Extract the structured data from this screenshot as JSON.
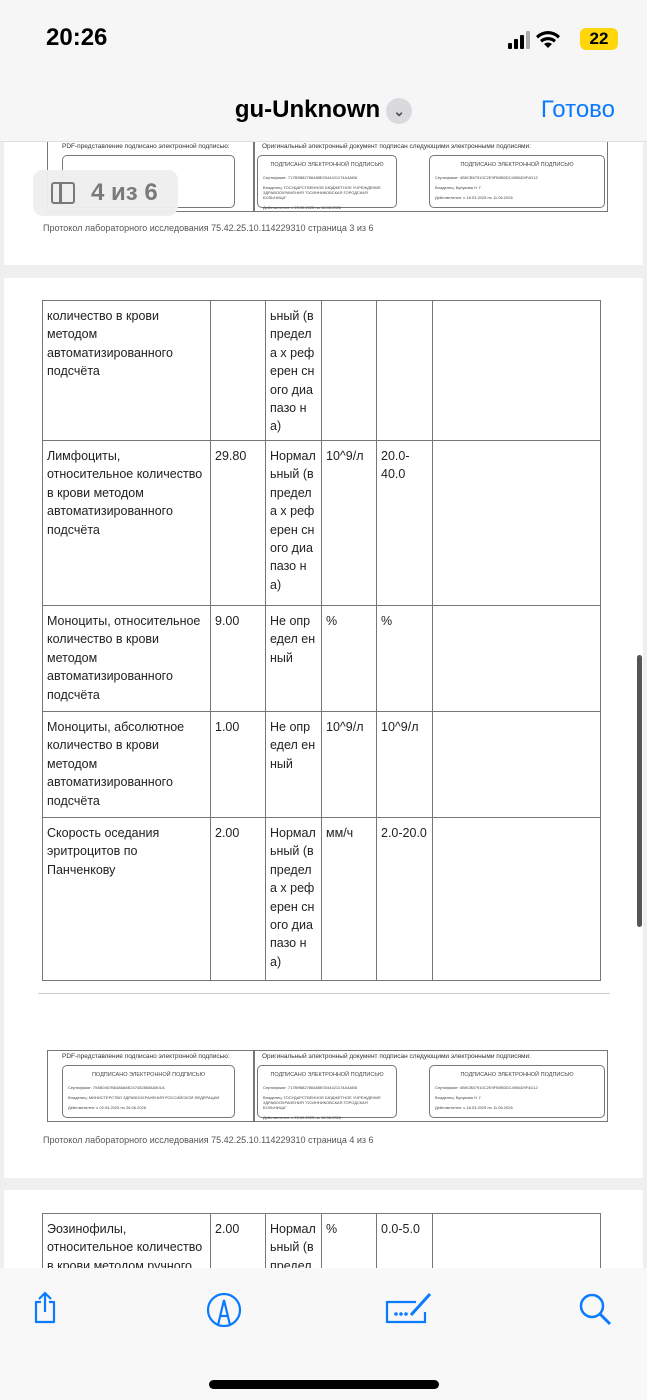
{
  "status_bar": {
    "time": "20:26",
    "battery": "22"
  },
  "nav": {
    "title": "gu-Unknown",
    "done_label": "Готово"
  },
  "page_indicator": "4 из 6",
  "signatures": {
    "pdf_header": "PDF-представление подписано электронной подписью:",
    "orig_header": "Оригинальный электронный документ подписан следующими электронными подписями:",
    "signed_label": "ПОДПИСАНО ЭЛЕКТРОННОЙ ПОДПИСЬЮ",
    "boxes": [
      {
        "cert": "Сертификат: 754B0457B6488A6E2474528658A501A",
        "owner": "Владелец: МИНИСТЕРСТВО ЗДРАВООХРАНЕНИЯ РОССИЙСКОЙ ФЕДЕРАЦИИ",
        "valid": "Действителен: с 02.04.2025 по 26.06.2026"
      },
      {
        "cert": "Сертификат: 717B9B82786488E0344421174A4AB8",
        "owner": "Владелец: ГОСУДАРСТВЕННОЕ БЮДЖЕТНОЕ УЧРЕЖДЕНИЕ ЗДРАВООХРАНЕНИЯ \"ОСИННИКОВСКАЯ ГОРОДСКАЯ БОЛЬНИЦА\"",
        "valid": "Действителен: с 23.05.2025 по 16.08.2026"
      },
      {
        "cert": "Сертификат: 4B9CB57910C2E9FB0B0DC4956D9F4D12",
        "owner": "Владелец: Бунукова Н. Г.",
        "valid": "Действителен: с 18.03.2025 по 11.06.2026"
      }
    ]
  },
  "page3_footer": "Протокол лабораторного исследования 75.42.25.10.114229310 страница 3 из 6",
  "page4_footer": "Протокол лабораторного исследования 75.42.25.10.114229310 страница 4 из 6",
  "page4_rows": [
    [
      "количество в крови методом автоматизированного подсчёта",
      "",
      "ьный (в предела х референ сного диапазо на)",
      "",
      ""
    ],
    [
      "Лимфоциты, относительное количество в крови методом автоматизированного подсчёта",
      "29.80",
      "Нормал ьный (в предела х референ сного диапазо на)",
      "10^9/л",
      "20.0-40.0"
    ],
    [
      "Моноциты, относительное количество в крови методом автоматизированного подсчёта",
      "9.00",
      "Не определ енный",
      "%",
      "%"
    ],
    [
      "Моноциты, абсолютное количество в крови методом автоматизированного подсчёта",
      "1.00",
      "Не определ енный",
      "10^9/л",
      "10^9/л"
    ],
    [
      "Скорость оседания эритроцитов по Панченкову",
      "2.00",
      "Нормал ьный (в предела х референ сного диапазо на)",
      "мм/ч",
      "2.0-20.0"
    ]
  ],
  "page5_rows": [
    [
      "Эозинофилы, относительное количество в крови методом ручного",
      "2.00",
      "Нормал ьный (в предела",
      "%",
      "0.0-5.0"
    ]
  ],
  "toolbar": {
    "share": "share-icon",
    "markup": "markup-icon",
    "sign": "signature-icon",
    "search": "search-icon"
  },
  "accent": "#0a7aff"
}
